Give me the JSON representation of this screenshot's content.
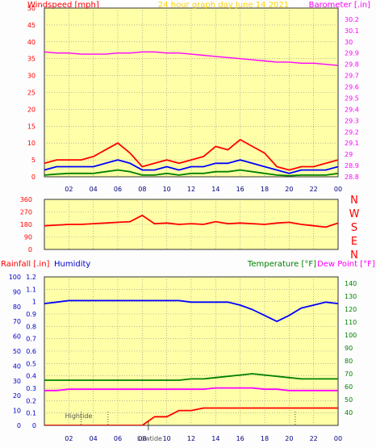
{
  "chart_data": [
    {
      "type": "line",
      "title": "24 hour graph day   June 14 2021",
      "ylabel": "Windspeed [mph]",
      "ylabel_right": "Barometer [.in]",
      "x_ticks": [
        "02",
        "04",
        "06",
        "08",
        "10",
        "12",
        "14",
        "16",
        "18",
        "20",
        "22",
        "00"
      ],
      "ylim": [
        0,
        50
      ],
      "yticks": [
        0,
        5,
        10,
        15,
        20,
        25,
        30,
        35,
        40,
        45,
        50
      ],
      "ylim_right": [
        28.8,
        30.3
      ],
      "yticks_right": [
        "28.8",
        "28.9",
        "29",
        "29.1",
        "29.2",
        "29.3",
        "29.4",
        "29.5",
        "29.6",
        "29.7",
        "29.8",
        "29.9",
        "30",
        "30.1",
        "30.2"
      ],
      "grid": true,
      "hours": [
        0,
        1,
        2,
        3,
        4,
        5,
        6,
        7,
        8,
        9,
        10,
        11,
        12,
        13,
        14,
        15,
        16,
        17,
        18,
        19,
        20,
        21,
        22,
        23,
        24
      ],
      "series": [
        {
          "color": "#ff0000",
          "values": [
            4,
            5,
            5,
            5,
            6,
            8,
            10,
            7,
            3,
            4,
            5,
            4,
            5,
            6,
            9,
            8,
            11,
            9,
            7,
            3,
            2,
            3,
            3,
            4,
            5
          ]
        },
        {
          "color": "#0000ff",
          "values": [
            2,
            3,
            3,
            3,
            3,
            4,
            5,
            4,
            2,
            2,
            3,
            2,
            3,
            3,
            4,
            4,
            5,
            4,
            3,
            2,
            1,
            2,
            2,
            2,
            3
          ]
        },
        {
          "color": "#008000",
          "values": [
            0.5,
            0.8,
            1,
            1,
            1,
            1.5,
            2,
            1.5,
            0.5,
            0.5,
            1,
            0.5,
            1,
            1,
            1.5,
            1.5,
            2,
            1.5,
            1,
            0.5,
            0.3,
            0.5,
            0.5,
            0.5,
            1
          ]
        },
        {
          "color": "#ff00ff",
          "axis": "right",
          "values": [
            29.91,
            29.9,
            29.9,
            29.89,
            29.89,
            29.89,
            29.9,
            29.9,
            29.91,
            29.91,
            29.9,
            29.9,
            29.89,
            29.88,
            29.87,
            29.86,
            29.85,
            29.84,
            29.83,
            29.82,
            29.82,
            29.81,
            29.81,
            29.8,
            29.79
          ]
        }
      ]
    },
    {
      "type": "line",
      "ylim": [
        0,
        360
      ],
      "yticks": [
        0,
        90,
        180,
        270,
        360
      ],
      "direction_labels": [
        "N",
        "W",
        "S",
        "E",
        "N"
      ],
      "grid": true,
      "hours": [
        0,
        1,
        2,
        3,
        4,
        5,
        6,
        7,
        8,
        9,
        10,
        11,
        12,
        13,
        14,
        15,
        16,
        17,
        18,
        19,
        20,
        21,
        22,
        23,
        24
      ],
      "series": [
        {
          "color": "#ff0000",
          "values": [
            170,
            175,
            180,
            180,
            185,
            190,
            195,
            200,
            245,
            185,
            190,
            180,
            185,
            180,
            200,
            185,
            190,
            185,
            180,
            190,
            195,
            180,
            170,
            160,
            190
          ]
        }
      ]
    },
    {
      "type": "line",
      "ylabel": "Rainfall [.in]",
      "ylabel_2": "Humidity",
      "ylabel_right": "Temperature [°F]",
      "ylabel_right_2": "Dew Point [°F]",
      "x_ticks": [
        "02",
        "04",
        "06",
        "08",
        "10",
        "12",
        "14",
        "16",
        "18",
        "20",
        "22",
        "00"
      ],
      "ylim": [
        0,
        1.2
      ],
      "yticks": [
        "0",
        "0.1",
        "0.2",
        "0.3",
        "0.4",
        "0.5",
        "0.6",
        "0.7",
        "0.8",
        "0.9",
        "1",
        "1.1",
        "1.2"
      ],
      "ylim_humidity": [
        0,
        100
      ],
      "yticks_humidity": [
        0,
        10,
        20,
        30,
        40,
        50,
        60,
        70,
        80,
        90,
        100
      ],
      "ylim_right": [
        30,
        145
      ],
      "yticks_right": [
        40,
        50,
        60,
        70,
        80,
        90,
        100,
        110,
        120,
        130,
        140
      ],
      "grid": true,
      "annotations": [
        "Hightide",
        "Lowtide"
      ],
      "hours": [
        0,
        1,
        2,
        3,
        4,
        5,
        6,
        7,
        8,
        9,
        10,
        11,
        12,
        13,
        14,
        15,
        16,
        17,
        18,
        19,
        20,
        21,
        22,
        23,
        24
      ],
      "series": [
        {
          "color": "#ff0000",
          "axis": "rain",
          "values": [
            0,
            0,
            0,
            0,
            0,
            0,
            0,
            0,
            0,
            0.07,
            0.07,
            0.12,
            0.12,
            0.14,
            0.14,
            0.14,
            0.14,
            0.14,
            0.14,
            0.14,
            0.14,
            0.14,
            0.14,
            0.14,
            0.14
          ]
        },
        {
          "color": "#0000ff",
          "axis": "humidity",
          "values": [
            82,
            83,
            84,
            84,
            84,
            84,
            84,
            84,
            84,
            84,
            84,
            84,
            83,
            83,
            83,
            83,
            81,
            78,
            74,
            70,
            74,
            79,
            81,
            83,
            82
          ]
        },
        {
          "color": "#008000",
          "axis": "right",
          "values": [
            65,
            65,
            65,
            65,
            65,
            65,
            65,
            65,
            65,
            65,
            65,
            65,
            66,
            66,
            67,
            68,
            69,
            70,
            69,
            68,
            67,
            66,
            66,
            66,
            66
          ]
        },
        {
          "color": "#ff00ff",
          "axis": "right",
          "values": [
            57,
            57,
            58,
            58,
            58,
            58,
            58,
            58,
            58,
            58,
            58,
            58,
            58,
            58,
            59,
            59,
            59,
            59,
            58,
            58,
            57,
            57,
            57,
            57,
            57
          ]
        }
      ]
    }
  ]
}
